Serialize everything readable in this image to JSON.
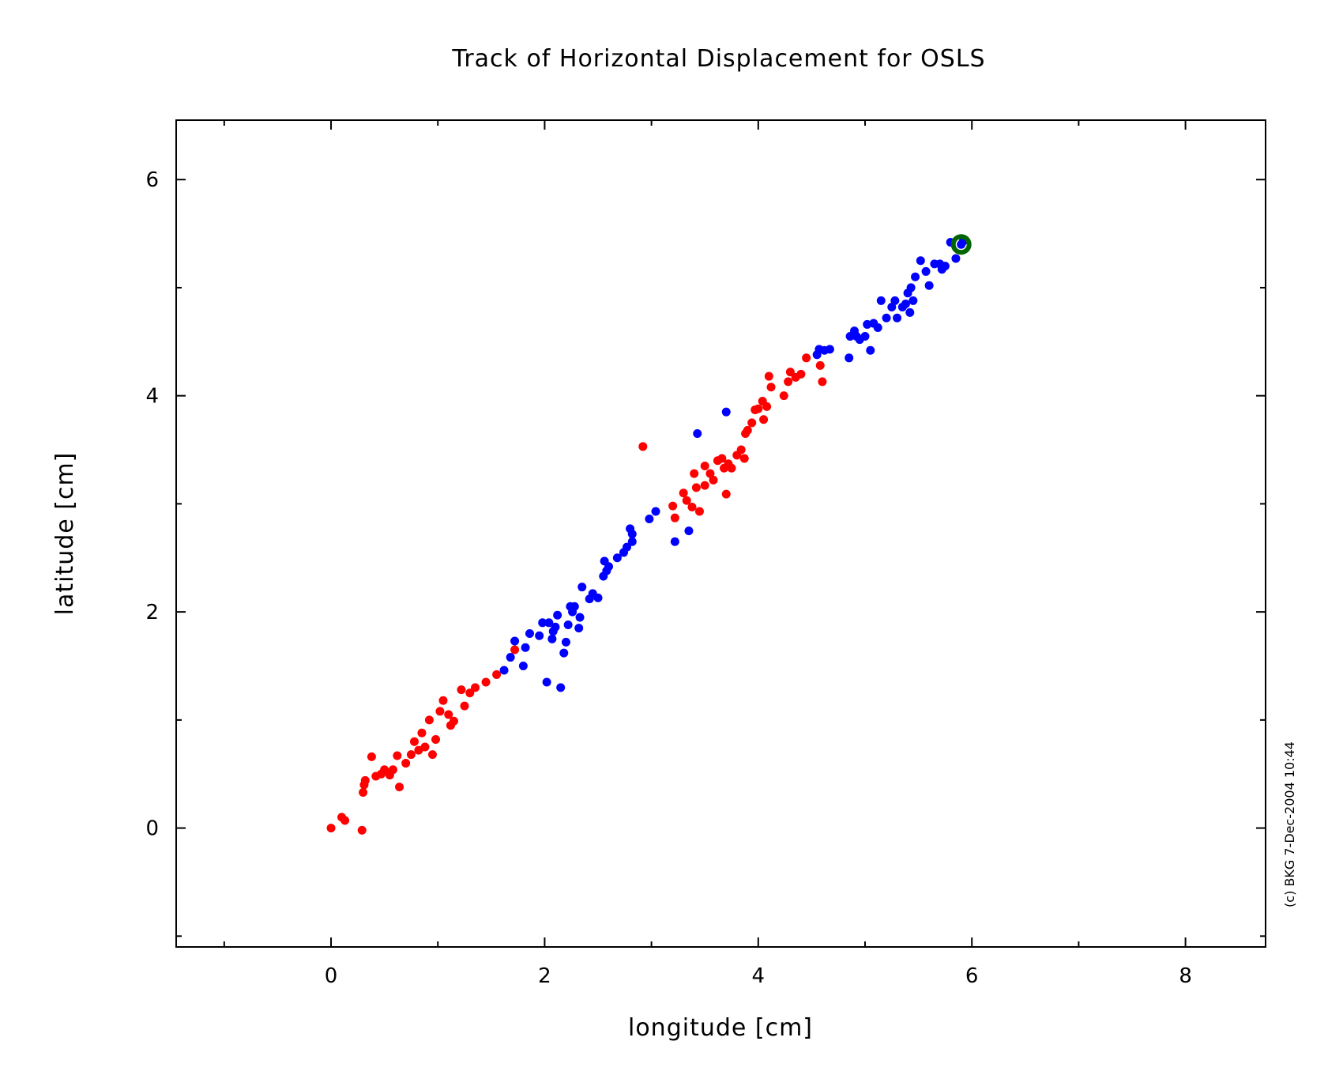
{
  "chart_data": {
    "type": "scatter",
    "title": "Track of Horizontal Displacement for OSLS",
    "xlabel": "longitude [cm]",
    "ylabel": "latitude [cm]",
    "credit": "(c) BKG 7-Dec-2004 10:44",
    "xlim": [
      -1.45,
      8.75
    ],
    "ylim": [
      -1.1,
      6.55
    ],
    "x_ticks": [
      0,
      2,
      4,
      6,
      8
    ],
    "y_ticks": [
      0,
      2,
      4,
      6
    ],
    "x_tick_labels": [
      "0",
      "2",
      "4",
      "6",
      "8"
    ],
    "y_tick_labels": [
      "0",
      "2",
      "4",
      "6"
    ],
    "grid": false,
    "colors": {
      "red": "#ff0000",
      "blue": "#0000ff",
      "marker": "#006400"
    },
    "series": [
      {
        "color": "#ff0000",
        "points": [
          [
            0.0,
            0.0
          ],
          [
            0.1,
            0.1
          ],
          [
            0.13,
            0.07
          ],
          [
            0.29,
            -0.02
          ],
          [
            0.3,
            0.33
          ],
          [
            0.31,
            0.4
          ],
          [
            0.32,
            0.44
          ],
          [
            0.38,
            0.66
          ],
          [
            0.42,
            0.48
          ],
          [
            0.47,
            0.5
          ],
          [
            0.5,
            0.54
          ],
          [
            0.55,
            0.49
          ],
          [
            0.58,
            0.54
          ],
          [
            0.62,
            0.67
          ],
          [
            0.64,
            0.38
          ],
          [
            0.7,
            0.6
          ],
          [
            0.75,
            0.68
          ],
          [
            0.78,
            0.8
          ],
          [
            0.82,
            0.72
          ],
          [
            0.85,
            0.88
          ],
          [
            0.88,
            0.75
          ],
          [
            0.92,
            1.0
          ],
          [
            0.95,
            0.68
          ],
          [
            0.98,
            0.82
          ],
          [
            1.02,
            1.08
          ],
          [
            1.05,
            1.18
          ],
          [
            1.1,
            1.05
          ],
          [
            1.12,
            0.95
          ],
          [
            1.15,
            0.99
          ],
          [
            1.22,
            1.28
          ],
          [
            1.25,
            1.13
          ],
          [
            1.3,
            1.25
          ],
          [
            1.35,
            1.3
          ],
          [
            1.45,
            1.35
          ],
          [
            1.55,
            1.42
          ],
          [
            1.72,
            1.65
          ],
          [
            2.92,
            3.53
          ],
          [
            3.2,
            2.98
          ],
          [
            3.22,
            2.87
          ],
          [
            3.3,
            3.1
          ],
          [
            3.33,
            3.03
          ],
          [
            3.38,
            2.97
          ],
          [
            3.4,
            3.28
          ],
          [
            3.42,
            3.15
          ],
          [
            3.45,
            2.93
          ],
          [
            3.5,
            3.35
          ],
          [
            3.5,
            3.17
          ],
          [
            3.55,
            3.28
          ],
          [
            3.58,
            3.22
          ],
          [
            3.62,
            3.4
          ],
          [
            3.66,
            3.42
          ],
          [
            3.68,
            3.33
          ],
          [
            3.7,
            3.09
          ],
          [
            3.72,
            3.37
          ],
          [
            3.75,
            3.33
          ],
          [
            3.8,
            3.45
          ],
          [
            3.84,
            3.5
          ],
          [
            3.87,
            3.42
          ],
          [
            3.88,
            3.65
          ],
          [
            3.9,
            3.68
          ],
          [
            3.94,
            3.75
          ],
          [
            3.97,
            3.87
          ],
          [
            4.0,
            3.88
          ],
          [
            4.04,
            3.95
          ],
          [
            4.05,
            3.78
          ],
          [
            4.08,
            3.9
          ],
          [
            4.1,
            4.18
          ],
          [
            4.12,
            4.08
          ],
          [
            4.24,
            4.0
          ],
          [
            4.28,
            4.13
          ],
          [
            4.3,
            4.22
          ],
          [
            4.35,
            4.17
          ],
          [
            4.4,
            4.2
          ],
          [
            4.45,
            4.35
          ],
          [
            4.58,
            4.28
          ],
          [
            4.6,
            4.13
          ]
        ]
      },
      {
        "color": "#0000ff",
        "points": [
          [
            1.62,
            1.46
          ],
          [
            1.68,
            1.58
          ],
          [
            1.72,
            1.73
          ],
          [
            1.8,
            1.5
          ],
          [
            1.82,
            1.67
          ],
          [
            1.86,
            1.8
          ],
          [
            1.95,
            1.78
          ],
          [
            1.98,
            1.9
          ],
          [
            2.02,
            1.35
          ],
          [
            2.04,
            1.9
          ],
          [
            2.07,
            1.75
          ],
          [
            2.08,
            1.82
          ],
          [
            2.1,
            1.86
          ],
          [
            2.12,
            1.97
          ],
          [
            2.15,
            1.3
          ],
          [
            2.18,
            1.62
          ],
          [
            2.2,
            1.72
          ],
          [
            2.22,
            1.88
          ],
          [
            2.24,
            2.05
          ],
          [
            2.26,
            2.0
          ],
          [
            2.28,
            2.05
          ],
          [
            2.32,
            1.85
          ],
          [
            2.33,
            1.95
          ],
          [
            2.35,
            2.23
          ],
          [
            2.42,
            2.12
          ],
          [
            2.45,
            2.17
          ],
          [
            2.5,
            2.13
          ],
          [
            2.55,
            2.33
          ],
          [
            2.56,
            2.47
          ],
          [
            2.58,
            2.38
          ],
          [
            2.6,
            2.42
          ],
          [
            2.68,
            2.5
          ],
          [
            2.74,
            2.55
          ],
          [
            2.77,
            2.6
          ],
          [
            2.8,
            2.77
          ],
          [
            2.82,
            2.72
          ],
          [
            2.82,
            2.65
          ],
          [
            2.98,
            2.86
          ],
          [
            3.04,
            2.93
          ],
          [
            3.22,
            2.65
          ],
          [
            3.35,
            2.75
          ],
          [
            3.43,
            3.65
          ],
          [
            3.7,
            3.85
          ],
          [
            4.55,
            4.38
          ],
          [
            4.57,
            4.43
          ],
          [
            4.62,
            4.42
          ],
          [
            4.67,
            4.43
          ],
          [
            4.85,
            4.35
          ],
          [
            4.86,
            4.55
          ],
          [
            4.9,
            4.6
          ],
          [
            4.92,
            4.55
          ],
          [
            4.95,
            4.52
          ],
          [
            5.0,
            4.55
          ],
          [
            5.02,
            4.66
          ],
          [
            5.05,
            4.42
          ],
          [
            5.08,
            4.67
          ],
          [
            5.12,
            4.63
          ],
          [
            5.15,
            4.88
          ],
          [
            5.2,
            4.72
          ],
          [
            5.25,
            4.82
          ],
          [
            5.28,
            4.88
          ],
          [
            5.3,
            4.72
          ],
          [
            5.35,
            4.82
          ],
          [
            5.38,
            4.85
          ],
          [
            5.4,
            4.95
          ],
          [
            5.42,
            4.77
          ],
          [
            5.43,
            5.0
          ],
          [
            5.45,
            4.88
          ],
          [
            5.47,
            5.1
          ],
          [
            5.52,
            5.25
          ],
          [
            5.57,
            5.15
          ],
          [
            5.6,
            5.02
          ],
          [
            5.65,
            5.22
          ],
          [
            5.7,
            5.22
          ],
          [
            5.72,
            5.17
          ],
          [
            5.75,
            5.2
          ],
          [
            5.8,
            5.42
          ],
          [
            5.85,
            5.27
          ],
          [
            5.9,
            5.4
          ],
          [
            5.92,
            5.43
          ]
        ]
      }
    ],
    "highlight": {
      "x": 5.9,
      "y": 5.4,
      "color": "#006400"
    }
  }
}
